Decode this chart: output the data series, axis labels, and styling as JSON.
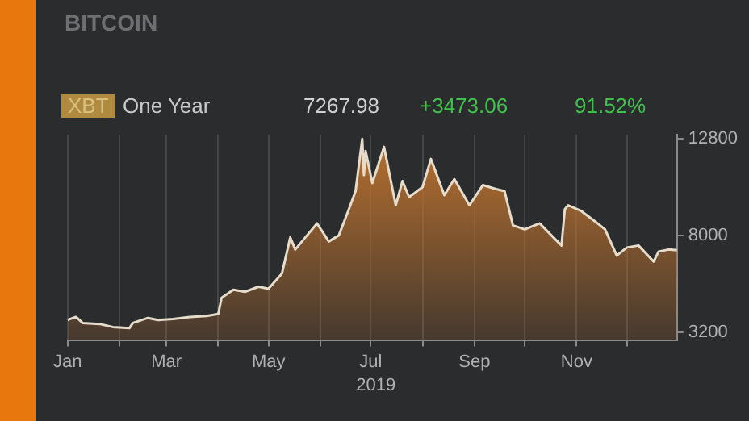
{
  "chart_data": {
    "type": "area",
    "title": "BITCOIN",
    "xlabel": "2019",
    "annotations": [
      "XBT",
      "One Year",
      "7267.98",
      "+3473.06",
      "91.52%"
    ],
    "x": [
      "2019-01-01",
      "2019-01-06",
      "2019-01-10",
      "2019-01-20",
      "2019-01-28",
      "2019-02-07",
      "2019-02-09",
      "2019-02-18",
      "2019-02-24",
      "2019-03-05",
      "2019-03-15",
      "2019-03-25",
      "2019-04-01",
      "2019-04-03",
      "2019-04-10",
      "2019-04-17",
      "2019-04-25",
      "2019-05-01",
      "2019-05-09",
      "2019-05-14",
      "2019-05-17",
      "2019-05-24",
      "2019-05-30",
      "2019-06-06",
      "2019-06-12",
      "2019-06-18",
      "2019-06-22",
      "2019-06-26",
      "2019-06-27",
      "2019-06-28",
      "2019-07-02",
      "2019-07-09",
      "2019-07-16",
      "2019-07-20",
      "2019-07-24",
      "2019-08-01",
      "2019-08-06",
      "2019-08-14",
      "2019-08-20",
      "2019-08-29",
      "2019-09-06",
      "2019-09-14",
      "2019-09-19",
      "2019-09-24",
      "2019-10-01",
      "2019-10-10",
      "2019-10-17",
      "2019-10-23",
      "2019-10-25",
      "2019-10-27",
      "2019-11-04",
      "2019-11-12",
      "2019-11-18",
      "2019-11-25",
      "2019-12-01",
      "2019-12-08",
      "2019-12-17",
      "2019-12-20",
      "2019-12-26",
      "2019-12-31"
    ],
    "series": [
      {
        "color": "#b9712f",
        "values": [
          3800,
          3950,
          3650,
          3600,
          3450,
          3400,
          3650,
          3900,
          3800,
          3850,
          3950,
          4000,
          4100,
          4900,
          5300,
          5200,
          5450,
          5350,
          6100,
          7900,
          7300,
          8000,
          8600,
          7700,
          8000,
          9300,
          10200,
          12800,
          11000,
          12200,
          10600,
          12400,
          9500,
          10700,
          9900,
          10400,
          11800,
          10000,
          10800,
          9500,
          10500,
          10300,
          10200,
          8500,
          8300,
          8600,
          8000,
          7500,
          9300,
          9500,
          9200,
          8700,
          8300,
          7000,
          7400,
          7500,
          6700,
          7200,
          7300,
          7268
        ]
      }
    ],
    "xlim": [
      "2019-01-01",
      "2019-12-31"
    ],
    "xticks": [
      {
        "value": "2019-01-01",
        "label": "Jan"
      },
      {
        "value": "2019-02-01",
        "label": null
      },
      {
        "value": "2019-03-01",
        "label": "Mar"
      },
      {
        "value": "2019-04-01",
        "label": null
      },
      {
        "value": "2019-05-01",
        "label": "May"
      },
      {
        "value": "2019-06-01",
        "label": null
      },
      {
        "value": "2019-07-01",
        "label": "Jul"
      },
      {
        "value": "2019-08-01",
        "label": null
      },
      {
        "value": "2019-09-01",
        "label": "Sep"
      },
      {
        "value": "2019-10-01",
        "label": null
      },
      {
        "value": "2019-11-01",
        "label": "Nov"
      },
      {
        "value": "2019-12-01",
        "label": null
      }
    ],
    "ylim": [
      2800,
      13000
    ],
    "yticks": [
      3200,
      8000,
      12800
    ],
    "grid": "x",
    "legend": false,
    "marker": "none",
    "line_style": "solid"
  }
}
